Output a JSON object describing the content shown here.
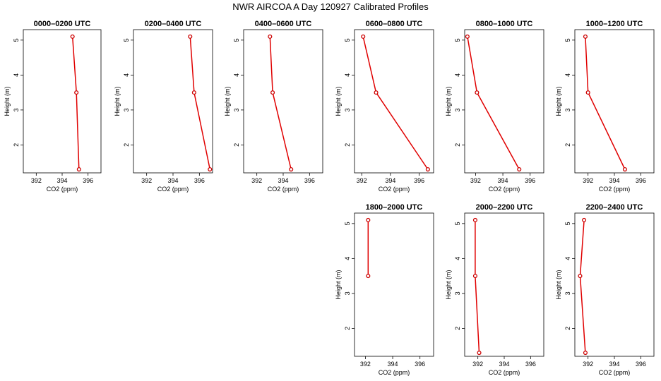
{
  "title": "NWR AIRCOA A  Day 120927  Calibrated Profiles",
  "colors": {
    "line": "#e00000",
    "marker": "#cc0000",
    "axis": "#000000"
  },
  "chart_data": [
    {
      "type": "line",
      "title": "0000–0200 UTC",
      "xlabel": "CO2 (ppm)",
      "ylabel": "Height (m)",
      "xlim": [
        391,
        397
      ],
      "ylim": [
        1.2,
        5.3
      ],
      "xticks": [
        "392",
        "394",
        "396"
      ],
      "yticks": [
        "2",
        "3",
        "4",
        "5"
      ],
      "points": [
        {
          "x": 394.8,
          "y": 5.1
        },
        {
          "x": 395.1,
          "y": 3.5
        },
        {
          "x": 395.3,
          "y": 1.3
        }
      ]
    },
    {
      "type": "line",
      "title": "0200–0400 UTC",
      "xlabel": "CO2 (ppm)",
      "ylabel": "Height (m)",
      "xlim": [
        391,
        397
      ],
      "ylim": [
        1.2,
        5.3
      ],
      "xticks": [
        "392",
        "394",
        "396"
      ],
      "yticks": [
        "2",
        "3",
        "4",
        "5"
      ],
      "points": [
        {
          "x": 395.3,
          "y": 5.1
        },
        {
          "x": 395.6,
          "y": 3.5
        },
        {
          "x": 396.8,
          "y": 1.3
        }
      ]
    },
    {
      "type": "line",
      "title": "0400–0600 UTC",
      "xlabel": "CO2 (ppm)",
      "ylabel": "Height (m)",
      "xlim": [
        391,
        397
      ],
      "ylim": [
        1.2,
        5.3
      ],
      "xticks": [
        "392",
        "394",
        "396"
      ],
      "yticks": [
        "2",
        "3",
        "4",
        "5"
      ],
      "points": [
        {
          "x": 393.0,
          "y": 5.1
        },
        {
          "x": 393.2,
          "y": 3.5
        },
        {
          "x": 394.6,
          "y": 1.3
        }
      ]
    },
    {
      "type": "line",
      "title": "0600–0800 UTC",
      "xlabel": "CO2 (ppm)",
      "ylabel": "Height (m)",
      "xlim": [
        391.5,
        397
      ],
      "ylim": [
        1.2,
        5.3
      ],
      "xticks": [
        "392",
        "394",
        "396"
      ],
      "yticks": [
        "2",
        "3",
        "4",
        "5"
      ],
      "points": [
        {
          "x": 392.1,
          "y": 5.1
        },
        {
          "x": 393.0,
          "y": 3.5
        },
        {
          "x": 396.6,
          "y": 1.3
        }
      ]
    },
    {
      "type": "line",
      "title": "0800–1000 UTC",
      "xlabel": "CO2 (ppm)",
      "ylabel": "Height (m)",
      "xlim": [
        391.2,
        397
      ],
      "ylim": [
        1.2,
        5.3
      ],
      "xticks": [
        "392",
        "394",
        "396"
      ],
      "yticks": [
        "2",
        "3",
        "4",
        "5"
      ],
      "points": [
        {
          "x": 391.4,
          "y": 5.1
        },
        {
          "x": 392.1,
          "y": 3.5
        },
        {
          "x": 395.2,
          "y": 1.3
        }
      ]
    },
    {
      "type": "line",
      "title": "1000–1200 UTC",
      "xlabel": "CO2 (ppm)",
      "ylabel": "Height (m)",
      "xlim": [
        391,
        397
      ],
      "ylim": [
        1.2,
        5.3
      ],
      "xticks": [
        "392",
        "394",
        "396"
      ],
      "yticks": [
        "2",
        "3",
        "4",
        "5"
      ],
      "points": [
        {
          "x": 391.8,
          "y": 5.1
        },
        {
          "x": 392.0,
          "y": 3.5
        },
        {
          "x": 394.8,
          "y": 1.3
        }
      ]
    },
    {
      "type": "line",
      "title": "1800–2000 UTC",
      "xlabel": "CO2 (ppm)",
      "ylabel": "Height (m)",
      "xlim": [
        391.2,
        397
      ],
      "ylim": [
        1.2,
        5.3
      ],
      "xticks": [
        "392",
        "394",
        "396"
      ],
      "yticks": [
        "2",
        "3",
        "4",
        "5"
      ],
      "points": [
        {
          "x": 392.2,
          "y": 5.1
        },
        {
          "x": 392.2,
          "y": 3.5
        }
      ]
    },
    {
      "type": "line",
      "title": "2000–2200 UTC",
      "xlabel": "CO2 (ppm)",
      "ylabel": "Height (m)",
      "xlim": [
        391,
        397
      ],
      "ylim": [
        1.2,
        5.3
      ],
      "xticks": [
        "392",
        "394",
        "396"
      ],
      "yticks": [
        "2",
        "3",
        "4",
        "5"
      ],
      "points": [
        {
          "x": 391.8,
          "y": 5.1
        },
        {
          "x": 391.8,
          "y": 3.5
        },
        {
          "x": 392.1,
          "y": 1.3
        }
      ]
    },
    {
      "type": "line",
      "title": "2200–2400 UTC",
      "xlabel": "CO2 (ppm)",
      "ylabel": "Height (m)",
      "xlim": [
        391,
        397
      ],
      "ylim": [
        1.2,
        5.3
      ],
      "xticks": [
        "392",
        "394",
        "396"
      ],
      "yticks": [
        "2",
        "3",
        "4",
        "5"
      ],
      "points": [
        {
          "x": 391.7,
          "y": 5.1
        },
        {
          "x": 391.4,
          "y": 3.5
        },
        {
          "x": 391.8,
          "y": 1.3
        }
      ]
    }
  ]
}
